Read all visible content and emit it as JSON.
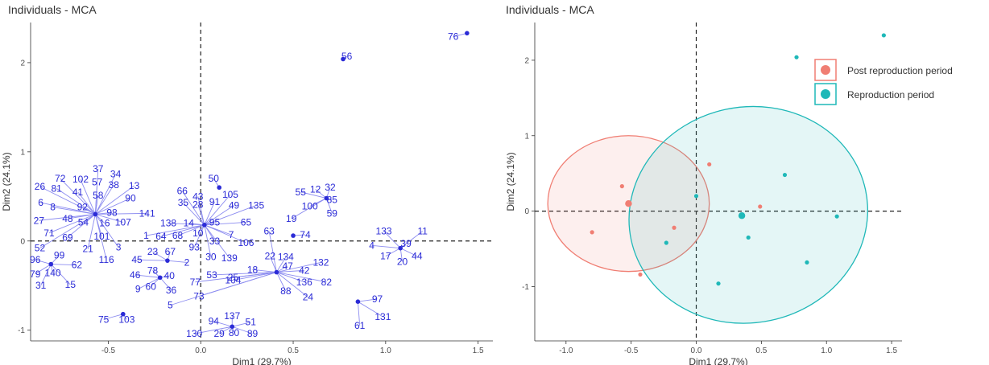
{
  "charts": [
    {
      "title": "Individuals - MCA"
    },
    {
      "title": "Individuals - MCA"
    }
  ],
  "chart_data": [
    {
      "type": "scatter",
      "title": "Individuals - MCA",
      "xlabel": "Dim1 (29.7%)",
      "ylabel": "Dim2 (24.1%)",
      "xlim": [
        -0.92,
        1.58
      ],
      "ylim": [
        -1.12,
        2.45
      ],
      "xticks": [
        -0.5,
        0.0,
        0.5,
        1.0,
        1.5
      ],
      "xtick_labels": [
        "-0.5",
        "0.0",
        "0.5",
        "1.0",
        "1.5"
      ],
      "yticks": [
        -1,
        0,
        1,
        2
      ],
      "ytick_labels": [
        "-1",
        "0",
        "1",
        "2"
      ],
      "reference_lines": [
        "x=0 dashed",
        "y=0 dashed"
      ],
      "grid": false,
      "point_color": "#2b2bd6",
      "spoke_color": "#8c8cf0",
      "centers": [
        {
          "x": -0.57,
          "y": 0.3
        },
        {
          "x": 0.02,
          "y": 0.18
        },
        {
          "x": 0.41,
          "y": -0.35
        },
        {
          "x": -0.81,
          "y": -0.26
        },
        {
          "x": -0.18,
          "y": -0.22
        },
        {
          "x": -0.22,
          "y": -0.41
        },
        {
          "x": 0.68,
          "y": 0.48
        },
        {
          "x": 0.5,
          "y": 0.06
        },
        {
          "x": 1.08,
          "y": -0.08
        },
        {
          "x": 0.85,
          "y": -0.68
        },
        {
          "x": 0.17,
          "y": -0.96
        },
        {
          "x": 0.1,
          "y": 0.6
        },
        {
          "x": -0.42,
          "y": -0.82
        },
        {
          "x": 0.77,
          "y": 2.04
        },
        {
          "x": 1.44,
          "y": 2.33
        }
      ],
      "labels": [
        {
          "t": "37",
          "x": -0.555,
          "y": 0.81,
          "c": 0
        },
        {
          "t": "34",
          "x": -0.46,
          "y": 0.75,
          "c": 0
        },
        {
          "t": "72",
          "x": -0.76,
          "y": 0.7,
          "c": 0
        },
        {
          "t": "102",
          "x": -0.65,
          "y": 0.69,
          "c": 0
        },
        {
          "t": "57",
          "x": -0.56,
          "y": 0.66,
          "c": 0
        },
        {
          "t": "38",
          "x": -0.47,
          "y": 0.63,
          "c": 0
        },
        {
          "t": "13",
          "x": -0.36,
          "y": 0.62,
          "c": 0
        },
        {
          "t": "26",
          "x": -0.87,
          "y": 0.61,
          "c": 0
        },
        {
          "t": "81",
          "x": -0.78,
          "y": 0.59,
          "c": 0
        },
        {
          "t": "41",
          "x": -0.665,
          "y": 0.55,
          "c": 0
        },
        {
          "t": "58",
          "x": -0.555,
          "y": 0.51,
          "c": 0
        },
        {
          "t": "90",
          "x": -0.38,
          "y": 0.48,
          "c": 0
        },
        {
          "t": "6",
          "x": -0.865,
          "y": 0.43,
          "c": 0
        },
        {
          "t": "8",
          "x": -0.8,
          "y": 0.38,
          "c": 0
        },
        {
          "t": "92",
          "x": -0.64,
          "y": 0.38,
          "c": 0
        },
        {
          "t": "98",
          "x": -0.48,
          "y": 0.32,
          "c": 0
        },
        {
          "t": "141",
          "x": -0.29,
          "y": 0.31,
          "c": 0
        },
        {
          "t": "27",
          "x": -0.875,
          "y": 0.23,
          "c": 0
        },
        {
          "t": "48",
          "x": -0.72,
          "y": 0.25,
          "c": 0
        },
        {
          "t": "54",
          "x": -0.635,
          "y": 0.21,
          "c": 0
        },
        {
          "t": "16",
          "x": -0.52,
          "y": 0.2,
          "c": 0
        },
        {
          "t": "107",
          "x": -0.42,
          "y": 0.21,
          "c": 0
        },
        {
          "t": "71",
          "x": -0.82,
          "y": 0.09,
          "c": 0
        },
        {
          "t": "69",
          "x": -0.72,
          "y": 0.04,
          "c": 0
        },
        {
          "t": "101",
          "x": -0.535,
          "y": 0.05,
          "c": 0
        },
        {
          "t": "21",
          "x": -0.61,
          "y": -0.09,
          "c": 0
        },
        {
          "t": "3",
          "x": -0.445,
          "y": -0.07,
          "c": 0
        },
        {
          "t": "116",
          "x": -0.51,
          "y": -0.21,
          "c": 0
        },
        {
          "t": "52",
          "x": -0.87,
          "y": -0.08,
          "c": 0
        },
        {
          "t": "99",
          "x": -0.765,
          "y": -0.16,
          "c": 3
        },
        {
          "t": "96",
          "x": -0.895,
          "y": -0.21,
          "c": 3
        },
        {
          "t": "62",
          "x": -0.67,
          "y": -0.27,
          "c": 3
        },
        {
          "t": "79",
          "x": -0.895,
          "y": -0.37,
          "c": 3
        },
        {
          "t": "140",
          "x": -0.8,
          "y": -0.36,
          "c": 3
        },
        {
          "t": "31",
          "x": -0.865,
          "y": -0.5,
          "c": 3
        },
        {
          "t": "15",
          "x": -0.705,
          "y": -0.49,
          "c": 3
        },
        {
          "t": "66",
          "x": -0.1,
          "y": 0.56,
          "c": 1
        },
        {
          "t": "43",
          "x": -0.015,
          "y": 0.5,
          "c": 1
        },
        {
          "t": "105",
          "x": 0.16,
          "y": 0.52,
          "c": 1
        },
        {
          "t": "28",
          "x": -0.015,
          "y": 0.41,
          "c": 1
        },
        {
          "t": "91",
          "x": 0.075,
          "y": 0.44,
          "c": 1
        },
        {
          "t": "35",
          "x": -0.095,
          "y": 0.43,
          "c": 1
        },
        {
          "t": "49",
          "x": 0.18,
          "y": 0.4,
          "c": 1
        },
        {
          "t": "135",
          "x": 0.3,
          "y": 0.4,
          "c": 1
        },
        {
          "t": "95",
          "x": 0.075,
          "y": 0.21,
          "c": 1
        },
        {
          "t": "65",
          "x": 0.245,
          "y": 0.21,
          "c": 1
        },
        {
          "t": "138",
          "x": -0.175,
          "y": 0.2,
          "c": 1
        },
        {
          "t": "14",
          "x": -0.065,
          "y": 0.2,
          "c": 1
        },
        {
          "t": "7",
          "x": 0.165,
          "y": 0.07,
          "c": 1
        },
        {
          "t": "10",
          "x": -0.015,
          "y": 0.09,
          "c": 1
        },
        {
          "t": "1",
          "x": -0.295,
          "y": 0.06,
          "c": 1
        },
        {
          "t": "64",
          "x": -0.215,
          "y": 0.05,
          "c": 1
        },
        {
          "t": "68",
          "x": -0.125,
          "y": 0.06,
          "c": 1
        },
        {
          "t": "33",
          "x": 0.075,
          "y": 0.0,
          "c": 1
        },
        {
          "t": "93",
          "x": -0.035,
          "y": -0.07,
          "c": 1
        },
        {
          "t": "30",
          "x": 0.055,
          "y": -0.18,
          "c": 1
        },
        {
          "t": "139",
          "x": 0.155,
          "y": -0.19,
          "c": 1
        },
        {
          "t": "106",
          "x": 0.245,
          "y": -0.02,
          "c": 1
        },
        {
          "t": "23",
          "x": -0.26,
          "y": -0.12,
          "c": 4
        },
        {
          "t": "67",
          "x": -0.165,
          "y": -0.12,
          "c": 4
        },
        {
          "t": "45",
          "x": -0.345,
          "y": -0.21,
          "c": 4
        },
        {
          "t": "2",
          "x": -0.075,
          "y": -0.24,
          "c": 4
        },
        {
          "t": "78",
          "x": -0.26,
          "y": -0.33,
          "c": 5
        },
        {
          "t": "46",
          "x": -0.355,
          "y": -0.38,
          "c": 5
        },
        {
          "t": "40",
          "x": -0.17,
          "y": -0.39,
          "c": 5
        },
        {
          "t": "60",
          "x": -0.27,
          "y": -0.51,
          "c": 5
        },
        {
          "t": "9",
          "x": -0.34,
          "y": -0.54,
          "c": 5
        },
        {
          "t": "36",
          "x": -0.16,
          "y": -0.55,
          "c": 5
        },
        {
          "t": "63",
          "x": 0.37,
          "y": 0.11,
          "c": 2
        },
        {
          "t": "22",
          "x": 0.375,
          "y": -0.17,
          "c": 2
        },
        {
          "t": "47",
          "x": 0.47,
          "y": -0.28,
          "c": 2
        },
        {
          "t": "134",
          "x": 0.46,
          "y": -0.18,
          "c": 2
        },
        {
          "t": "18",
          "x": 0.28,
          "y": -0.32,
          "c": 2
        },
        {
          "t": "53",
          "x": 0.06,
          "y": -0.38,
          "c": 2
        },
        {
          "t": "25",
          "x": 0.175,
          "y": -0.41,
          "c": 2
        },
        {
          "t": "104",
          "x": 0.175,
          "y": -0.44,
          "c": 2
        },
        {
          "t": "77",
          "x": -0.03,
          "y": -0.46,
          "c": 2
        },
        {
          "t": "73",
          "x": -0.01,
          "y": -0.62,
          "c": 2
        },
        {
          "t": "5",
          "x": -0.165,
          "y": -0.72,
          "c": 2
        },
        {
          "t": "132",
          "x": 0.65,
          "y": -0.24,
          "c": 2
        },
        {
          "t": "42",
          "x": 0.56,
          "y": -0.33,
          "c": 2
        },
        {
          "t": "136",
          "x": 0.56,
          "y": -0.46,
          "c": 2
        },
        {
          "t": "82",
          "x": 0.68,
          "y": -0.46,
          "c": 2
        },
        {
          "t": "88",
          "x": 0.46,
          "y": -0.56,
          "c": 2
        },
        {
          "t": "24",
          "x": 0.58,
          "y": -0.63,
          "c": 2
        },
        {
          "t": "55",
          "x": 0.54,
          "y": 0.55,
          "c": 6
        },
        {
          "t": "12",
          "x": 0.62,
          "y": 0.58,
          "c": 6
        },
        {
          "t": "32",
          "x": 0.7,
          "y": 0.6,
          "c": 6
        },
        {
          "t": "85",
          "x": 0.71,
          "y": 0.46,
          "c": 6
        },
        {
          "t": "100",
          "x": 0.59,
          "y": 0.39,
          "c": 6
        },
        {
          "t": "59",
          "x": 0.71,
          "y": 0.31,
          "c": 6
        },
        {
          "t": "19",
          "x": 0.49,
          "y": 0.25,
          "c": 6
        },
        {
          "t": "74",
          "x": 0.565,
          "y": 0.07,
          "c": 7
        },
        {
          "t": "133",
          "x": 0.99,
          "y": 0.11,
          "c": 8
        },
        {
          "t": "11",
          "x": 1.2,
          "y": 0.11,
          "c": 8
        },
        {
          "t": "4",
          "x": 0.925,
          "y": -0.05,
          "c": 8
        },
        {
          "t": "39",
          "x": 1.11,
          "y": -0.03,
          "c": 8
        },
        {
          "t": "17",
          "x": 1.0,
          "y": -0.17,
          "c": 8
        },
        {
          "t": "20",
          "x": 1.09,
          "y": -0.23,
          "c": 8
        },
        {
          "t": "44",
          "x": 1.17,
          "y": -0.17,
          "c": 8
        },
        {
          "t": "97",
          "x": 0.955,
          "y": -0.65,
          "c": 9
        },
        {
          "t": "131",
          "x": 0.985,
          "y": -0.85,
          "c": 9
        },
        {
          "t": "61",
          "x": 0.86,
          "y": -0.95,
          "c": 9
        },
        {
          "t": "137",
          "x": 0.17,
          "y": -0.84,
          "c": 10
        },
        {
          "t": "94",
          "x": 0.07,
          "y": -0.9,
          "c": 10
        },
        {
          "t": "51",
          "x": 0.27,
          "y": -0.91,
          "c": 10
        },
        {
          "t": "130",
          "x": -0.035,
          "y": -1.04,
          "c": 10
        },
        {
          "t": "29",
          "x": 0.1,
          "y": -1.04,
          "c": 10
        },
        {
          "t": "80",
          "x": 0.18,
          "y": -1.03,
          "c": 10
        },
        {
          "t": "89",
          "x": 0.28,
          "y": -1.04,
          "c": 10
        },
        {
          "t": "50",
          "x": 0.07,
          "y": 0.7,
          "c": 11
        },
        {
          "t": "75",
          "x": -0.525,
          "y": -0.88,
          "c": 12
        },
        {
          "t": "103",
          "x": -0.4,
          "y": -0.88,
          "c": 12
        },
        {
          "t": "56",
          "x": 0.79,
          "y": 2.07,
          "c": 13
        },
        {
          "t": "76",
          "x": 1.365,
          "y": 2.29,
          "c": 14
        }
      ]
    },
    {
      "type": "scatter",
      "title": "Individuals - MCA",
      "xlabel": "Dim1 (29.7%)",
      "ylabel": "Dim2 (24.1%)",
      "xlim": [
        -1.24,
        1.58
      ],
      "ylim": [
        -1.72,
        2.5
      ],
      "xticks": [
        -1.0,
        -0.5,
        0.0,
        0.5,
        1.0,
        1.5
      ],
      "xtick_labels": [
        "-1.0",
        "-0.5",
        "0.0",
        "0.5",
        "1.0",
        "1.5"
      ],
      "yticks": [
        -1,
        0,
        1,
        2
      ],
      "ytick_labels": [
        "-1",
        "0",
        "1",
        "2"
      ],
      "reference_lines": [
        "x=0 dashed",
        "y=0 dashed"
      ],
      "grid": false,
      "legend_position": "top-right",
      "series": [
        {
          "name": "Post reproduction period",
          "color": "#f07e73",
          "mean": {
            "x": -0.52,
            "y": 0.1
          },
          "ellipse": {
            "cx": -0.52,
            "cy": 0.1,
            "rx": 0.62,
            "ry": 0.9,
            "angle": 0
          },
          "points": [
            {
              "x": -0.8,
              "y": -0.28
            },
            {
              "x": -0.57,
              "y": 0.33
            },
            {
              "x": -0.17,
              "y": -0.22
            },
            {
              "x": -0.43,
              "y": -0.84
            },
            {
              "x": 0.1,
              "y": 0.62
            },
            {
              "x": 0.49,
              "y": 0.06
            }
          ]
        },
        {
          "name": "Reproduction period",
          "color": "#1fb8b8",
          "mean": {
            "x": 0.35,
            "y": -0.06
          },
          "ellipse": {
            "cx": 0.4,
            "cy": -0.05,
            "rx": 0.92,
            "ry": 1.43,
            "angle": -12
          },
          "points": [
            {
              "x": 0.0,
              "y": 0.2
            },
            {
              "x": -0.23,
              "y": -0.42
            },
            {
              "x": 0.68,
              "y": 0.48
            },
            {
              "x": 0.4,
              "y": -0.35
            },
            {
              "x": 0.17,
              "y": -0.96
            },
            {
              "x": 1.08,
              "y": -0.07
            },
            {
              "x": 0.85,
              "y": -0.68
            },
            {
              "x": 0.77,
              "y": 2.04
            },
            {
              "x": 1.44,
              "y": 2.33
            }
          ]
        }
      ]
    }
  ]
}
